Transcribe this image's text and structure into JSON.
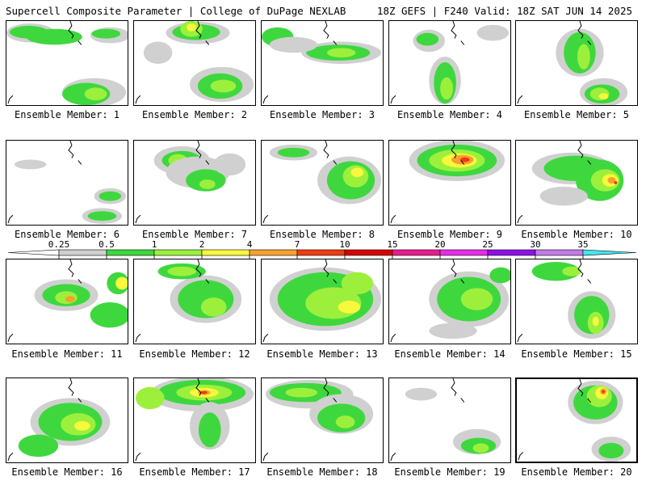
{
  "header": {
    "title": "Supercell Composite Parameter | College of DuPage NEXLAB",
    "run_info": "18Z GEFS | F240 Valid: 18Z SAT JUN 14 2025"
  },
  "panel_label_prefix": "Ensemble Member: ",
  "members": [
    1,
    2,
    3,
    4,
    5,
    6,
    7,
    8,
    9,
    10,
    11,
    12,
    13,
    14,
    15,
    16,
    17,
    18,
    19,
    20
  ],
  "selected_member": 20,
  "legend": {
    "ticks": [
      "0.25",
      "0.5",
      "1",
      "2",
      "4",
      "7",
      "10",
      "15",
      "20",
      "25",
      "30",
      "35"
    ],
    "colors": [
      "#d0d0d0",
      "#3ed83e",
      "#9cf03c",
      "#f8f83c",
      "#f8a030",
      "#f03c10",
      "#d80000",
      "#e81c8c",
      "#e82ce8",
      "#9010e8",
      "#c07ce8",
      "#40e8f0"
    ]
  }
}
